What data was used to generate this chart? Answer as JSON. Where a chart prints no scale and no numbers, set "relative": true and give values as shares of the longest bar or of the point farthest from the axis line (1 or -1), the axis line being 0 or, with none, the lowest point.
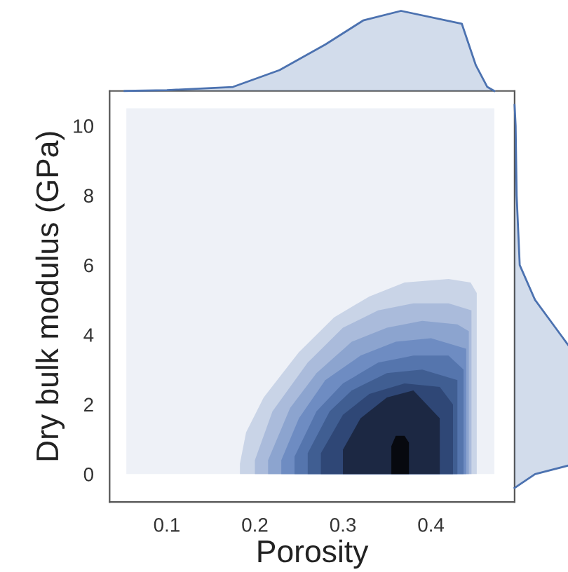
{
  "chart_data": [
    {
      "type": "area",
      "xlabel": "Porosity",
      "ylabel": "Dry bulk modulus (GPa)",
      "xlim": [
        0.035,
        0.495
      ],
      "ylim": [
        -0.8,
        11.0
      ],
      "xticks": [
        0.1,
        0.2,
        0.3,
        0.4
      ],
      "yticks": [
        0,
        2,
        4,
        6,
        8,
        10
      ],
      "series": [
        {
          "color": "#eef1f7",
          "x": [
            0.054,
            0.472
          ],
          "values": [
            10.5,
            10.5
          ]
        },
        {
          "color": "#c9d4e7",
          "x": [
            0.183,
            0.19,
            0.21,
            0.25,
            0.29,
            0.33,
            0.37,
            0.42,
            0.445,
            0.452
          ],
          "values": [
            0.3,
            1.2,
            2.2,
            3.5,
            4.5,
            5.1,
            5.5,
            5.6,
            5.5,
            5.2
          ]
        },
        {
          "color": "#aabbdb",
          "x": [
            0.2,
            0.22,
            0.26,
            0.3,
            0.34,
            0.38,
            0.42,
            0.446
          ],
          "values": [
            0.4,
            1.8,
            3.2,
            4.2,
            4.7,
            4.9,
            4.9,
            4.7
          ]
        },
        {
          "color": "#8ca4cf",
          "x": [
            0.215,
            0.24,
            0.27,
            0.31,
            0.35,
            0.39,
            0.43,
            0.443
          ],
          "values": [
            0.4,
            1.9,
            2.9,
            3.8,
            4.2,
            4.4,
            4.3,
            4.1
          ]
        },
        {
          "color": "#6e8cc2",
          "x": [
            0.23,
            0.25,
            0.28,
            0.32,
            0.36,
            0.4,
            0.44
          ],
          "values": [
            0.4,
            1.6,
            2.7,
            3.4,
            3.8,
            3.9,
            3.6
          ]
        },
        {
          "color": "#5575ad",
          "x": [
            0.245,
            0.27,
            0.3,
            0.34,
            0.38,
            0.42,
            0.437
          ],
          "values": [
            0.5,
            1.8,
            2.6,
            3.2,
            3.4,
            3.4,
            3.0
          ]
        },
        {
          "color": "#405e92",
          "x": [
            0.26,
            0.285,
            0.31,
            0.35,
            0.39,
            0.43
          ],
          "values": [
            0.6,
            1.8,
            2.4,
            2.9,
            3.0,
            2.7
          ]
        },
        {
          "color": "#2f4776",
          "x": [
            0.275,
            0.3,
            0.33,
            0.37,
            0.41,
            0.425
          ],
          "values": [
            0.6,
            1.7,
            2.3,
            2.6,
            2.5,
            2.0
          ]
        },
        {
          "color": "#1c2843",
          "x": [
            0.3,
            0.32,
            0.35,
            0.38,
            0.41
          ],
          "values": [
            0.7,
            1.6,
            2.2,
            2.4,
            1.6
          ]
        },
        {
          "color": "#07090f",
          "x": [
            0.355,
            0.36,
            0.37,
            0.375
          ],
          "values": [
            0.8,
            1.1,
            1.1,
            0.9
          ]
        }
      ]
    },
    {
      "type": "area",
      "relative": true,
      "tick_labels": false,
      "xlim": [
        0.035,
        0.495
      ],
      "series": [
        {
          "color": "#4c72b0",
          "x": [
            0.052,
            0.1,
            0.175,
            0.228,
            0.28,
            0.323,
            0.366,
            0.435,
            0.451,
            0.464,
            0.472
          ],
          "values": [
            0.0,
            0.01,
            0.05,
            0.26,
            0.58,
            0.88,
            1.0,
            0.84,
            0.32,
            0.05,
            0.0
          ]
        }
      ]
    },
    {
      "type": "area",
      "relative": true,
      "orientation": "horizontal",
      "tick_labels": false,
      "ylim": [
        -0.8,
        11.0
      ],
      "series": [
        {
          "color": "#4c72b0",
          "x": [
            -0.4,
            -0.3,
            0.0,
            0.3,
            1.0,
            2.0,
            3.0,
            4.0,
            5.0,
            6.0,
            8.0,
            10.0,
            10.6
          ],
          "values": [
            0.0,
            0.05,
            0.2,
            0.6,
            1.0,
            0.9,
            0.7,
            0.45,
            0.2,
            0.05,
            0.02,
            0.01,
            0.0
          ]
        }
      ]
    }
  ]
}
